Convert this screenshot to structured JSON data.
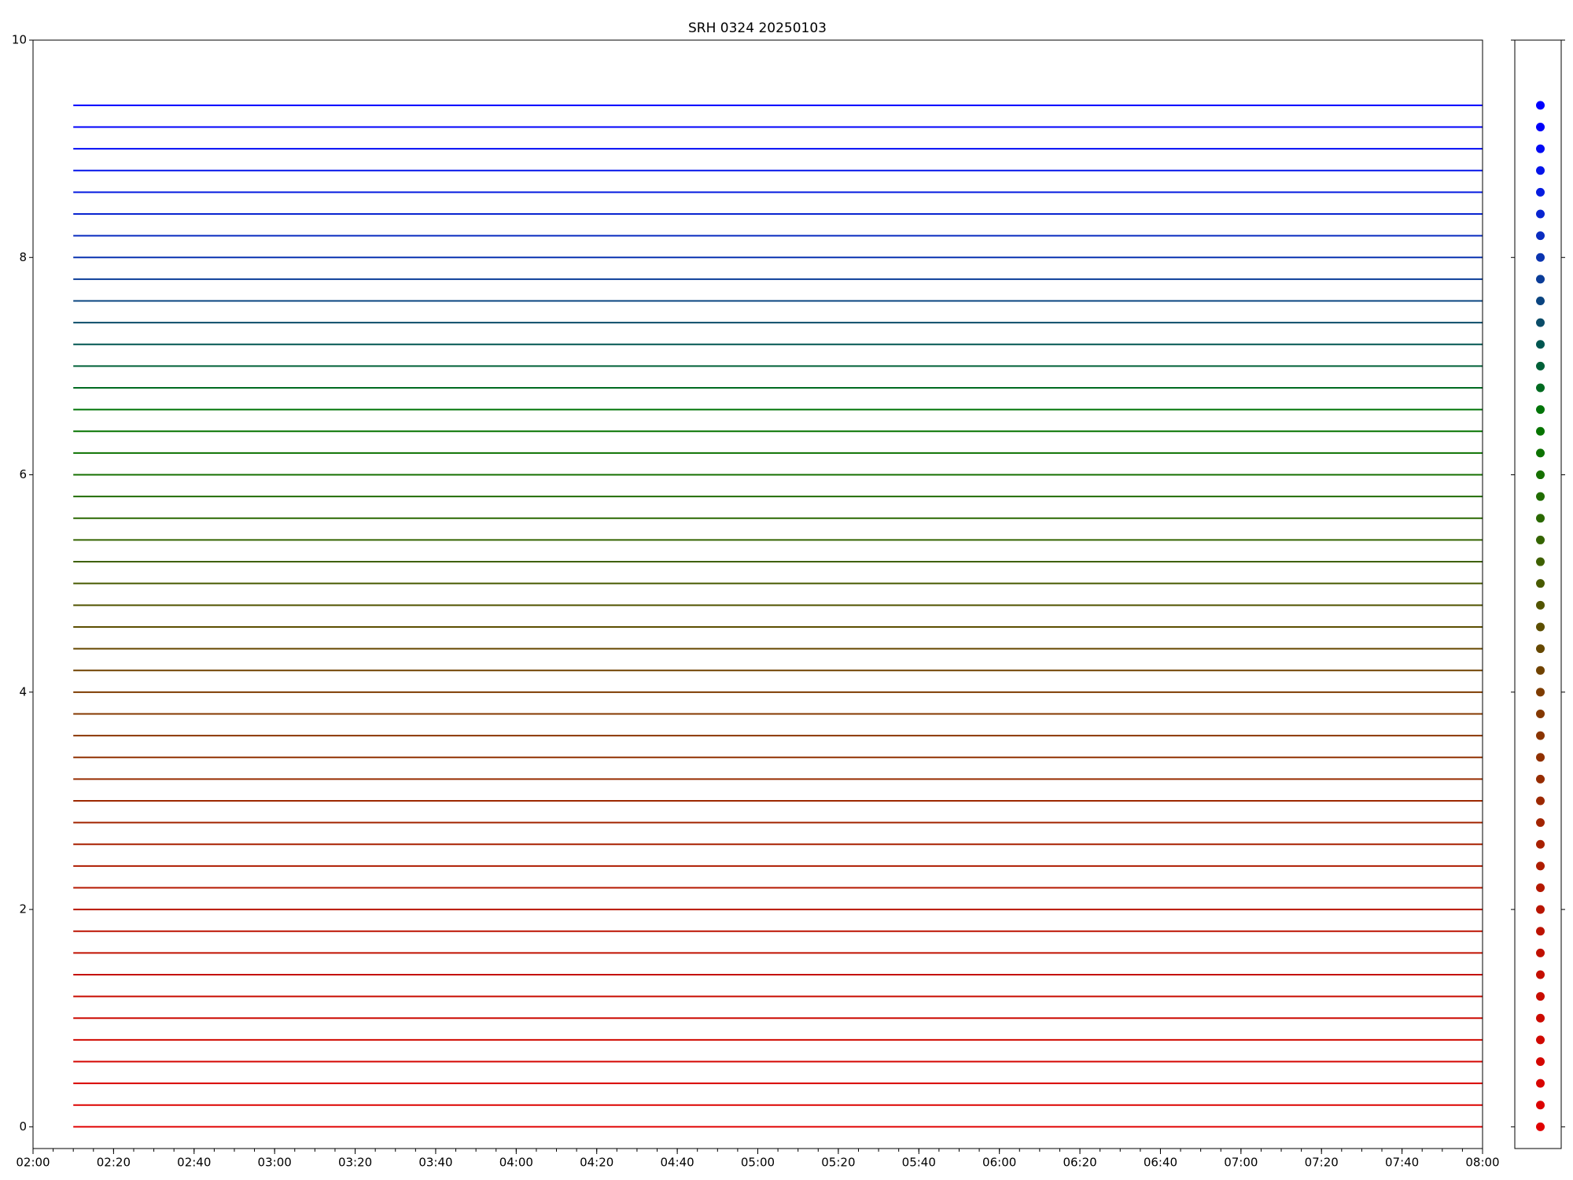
{
  "chart_data": {
    "type": "line",
    "title": "SRH 0324 20250103",
    "x": [
      "02:10",
      "08:00"
    ],
    "xlim": [
      "02:00",
      "08:00"
    ],
    "xticks": [
      "02:00",
      "02:20",
      "02:40",
      "03:00",
      "03:20",
      "03:40",
      "04:00",
      "04:20",
      "04:40",
      "05:00",
      "05:20",
      "05:40",
      "06:00",
      "06:20",
      "06:40",
      "07:00",
      "07:20",
      "07:40",
      "08:00"
    ],
    "ylim": [
      -0.2,
      10
    ],
    "yticks": [
      0,
      2,
      4,
      6,
      8,
      10
    ],
    "series": [
      {
        "color": "#e00000",
        "values": [
          0,
          0
        ]
      },
      {
        "color": "#dc0200",
        "values": [
          0.2,
          0.2
        ]
      },
      {
        "color": "#d80400",
        "values": [
          0.4,
          0.4
        ]
      },
      {
        "color": "#d40600",
        "values": [
          0.6,
          0.6
        ]
      },
      {
        "color": "#d00800",
        "values": [
          0.8,
          0.8
        ]
      },
      {
        "color": "#cc0a00",
        "values": [
          1,
          1
        ]
      },
      {
        "color": "#c80c00",
        "values": [
          1.2,
          1.2
        ]
      },
      {
        "color": "#c40e00",
        "values": [
          1.4,
          1.4
        ]
      },
      {
        "color": "#c01000",
        "values": [
          1.6,
          1.6
        ]
      },
      {
        "color": "#bc1200",
        "values": [
          1.8,
          1.8
        ]
      },
      {
        "color": "#b81400",
        "values": [
          2,
          2
        ]
      },
      {
        "color": "#b41800",
        "values": [
          2.2,
          2.2
        ]
      },
      {
        "color": "#ae1c00",
        "values": [
          2.4,
          2.4
        ]
      },
      {
        "color": "#a82000",
        "values": [
          2.6,
          2.6
        ]
      },
      {
        "color": "#a22400",
        "values": [
          2.8,
          2.8
        ]
      },
      {
        "color": "#9c2800",
        "values": [
          3,
          3
        ]
      },
      {
        "color": "#962c00",
        "values": [
          3.2,
          3.2
        ]
      },
      {
        "color": "#903000",
        "values": [
          3.4,
          3.4
        ]
      },
      {
        "color": "#8a3400",
        "values": [
          3.6,
          3.6
        ]
      },
      {
        "color": "#843800",
        "values": [
          3.8,
          3.8
        ]
      },
      {
        "color": "#7e3c00",
        "values": [
          4,
          4
        ]
      },
      {
        "color": "#704200",
        "values": [
          4.2,
          4.2
        ]
      },
      {
        "color": "#664800",
        "values": [
          4.4,
          4.4
        ]
      },
      {
        "color": "#5c4e00",
        "values": [
          4.6,
          4.6
        ]
      },
      {
        "color": "#525400",
        "values": [
          4.8,
          4.8
        ]
      },
      {
        "color": "#485a00",
        "values": [
          5,
          5
        ]
      },
      {
        "color": "#3e6000",
        "values": [
          5.2,
          5.2
        ]
      },
      {
        "color": "#346400",
        "values": [
          5.4,
          5.4
        ]
      },
      {
        "color": "#2a6800",
        "values": [
          5.6,
          5.6
        ]
      },
      {
        "color": "#206c00",
        "values": [
          5.8,
          5.8
        ]
      },
      {
        "color": "#167000",
        "values": [
          6,
          6
        ]
      },
      {
        "color": "#0c7200",
        "values": [
          6.2,
          6.2
        ]
      },
      {
        "color": "#067400",
        "values": [
          6.4,
          6.4
        ]
      },
      {
        "color": "#007408",
        "values": [
          6.6,
          6.6
        ]
      },
      {
        "color": "#006a20",
        "values": [
          6.8,
          6.8
        ]
      },
      {
        "color": "#006038",
        "values": [
          7,
          7
        ]
      },
      {
        "color": "#005650",
        "values": [
          7.2,
          7.2
        ]
      },
      {
        "color": "#0a4c68",
        "values": [
          7.4,
          7.4
        ]
      },
      {
        "color": "#0a4480",
        "values": [
          7.6,
          7.6
        ]
      },
      {
        "color": "#0a3c98",
        "values": [
          7.8,
          7.8
        ]
      },
      {
        "color": "#0a34b0",
        "values": [
          8,
          8
        ]
      },
      {
        "color": "#0a2cc0",
        "values": [
          8.2,
          8.2
        ]
      },
      {
        "color": "#0824d0",
        "values": [
          8.4,
          8.4
        ]
      },
      {
        "color": "#061ce0",
        "values": [
          8.6,
          8.6
        ]
      },
      {
        "color": "#0414ea",
        "values": [
          8.8,
          8.8
        ]
      },
      {
        "color": "#020af4",
        "values": [
          9,
          9
        ]
      },
      {
        "color": "#0000fa",
        "values": [
          9.2,
          9.2
        ]
      },
      {
        "color": "#0000ff",
        "values": [
          9.4,
          9.4
        ]
      }
    ]
  }
}
